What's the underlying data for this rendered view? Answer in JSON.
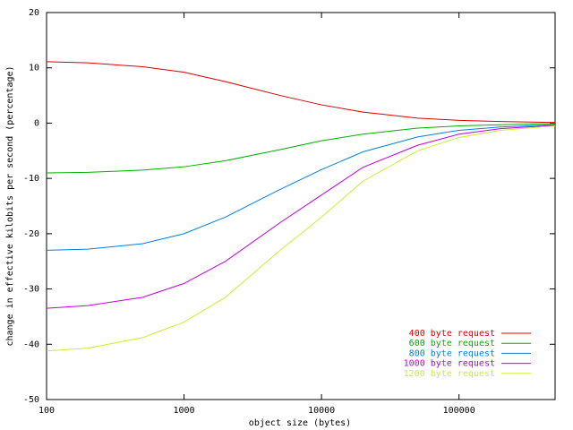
{
  "chart_data": {
    "type": "line",
    "xlabel": "object size (bytes)",
    "ylabel": "change in effective kilobits per second (percentage)",
    "x": [
      100,
      200,
      500,
      1000,
      2000,
      5000,
      10000,
      20000,
      50000,
      100000,
      200000,
      500000
    ],
    "xscale": "log",
    "xlim": [
      100,
      500000
    ],
    "xticks": [
      100,
      1000,
      10000,
      100000
    ],
    "ylim": [
      -50,
      20
    ],
    "yticks": [
      -50,
      -40,
      -30,
      -20,
      -10,
      0,
      10,
      20
    ],
    "legend": "lower right",
    "series": [
      {
        "name": "400 byte request",
        "color": "#e00000",
        "values": [
          11.1,
          10.9,
          10.2,
          9.2,
          7.5,
          5,
          3.3,
          2,
          0.9,
          0.5,
          0.3,
          0.1
        ]
      },
      {
        "name": "600 byte request",
        "color": "#00b000",
        "values": [
          -9,
          -8.9,
          -8.5,
          -7.9,
          -6.8,
          -4.8,
          -3.2,
          -2,
          -0.9,
          -0.5,
          -0.3,
          -0.1
        ]
      },
      {
        "name": "800 byte request",
        "color": "#0080e0",
        "values": [
          -23,
          -22.8,
          -21.8,
          -20,
          -17,
          -12,
          -8.4,
          -5.2,
          -2.5,
          -1.3,
          -0.7,
          -0.3
        ]
      },
      {
        "name": "1000 byte request",
        "color": "#c000e0",
        "values": [
          -33.5,
          -33,
          -31.5,
          -29,
          -25,
          -18,
          -13,
          -8,
          -4,
          -2,
          -1,
          -0.4
        ]
      },
      {
        "name": "1200 byte request",
        "color": "#c8f030",
        "values": [
          -41.2,
          -40.7,
          -38.8,
          -36,
          -31.5,
          -23,
          -17,
          -10.5,
          -5,
          -2.6,
          -1.3,
          -0.5
        ]
      }
    ]
  }
}
